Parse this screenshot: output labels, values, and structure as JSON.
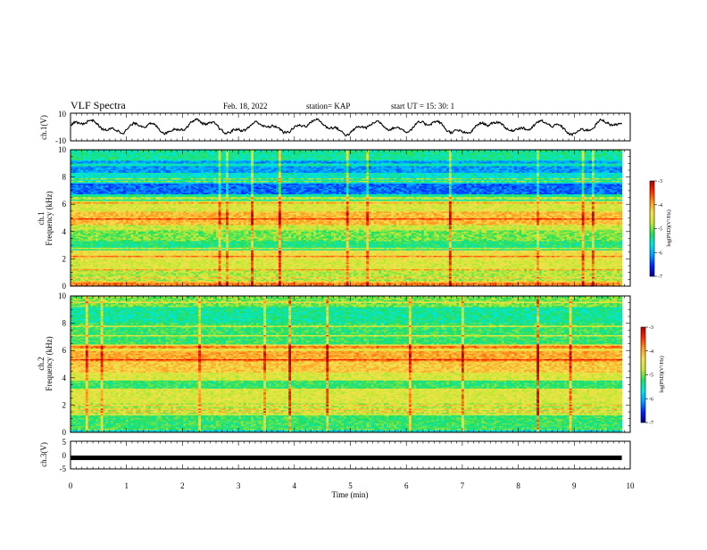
{
  "header": {
    "title": "VLF Spectra",
    "date": "Feb. 18, 2022",
    "station": "station= KAP",
    "start": "start  UT =   15: 30: 1"
  },
  "colorscale": {
    "stops": [
      "#000080",
      "#0022ff",
      "#00a0ff",
      "#00e6e6",
      "#20e060",
      "#c8e832",
      "#f5e050",
      "#ff9a20",
      "#ff2a00",
      "#b00000"
    ]
  },
  "chart_data": [
    {
      "type": "line",
      "name": "ch1-waveform",
      "ylabel": "ch.1(V)",
      "xlim": [
        0,
        10
      ],
      "ylim": [
        -10,
        10
      ],
      "yticks": [
        "10",
        "-10"
      ],
      "x_end": 9.85,
      "description_series": "raw signal fluctuates roughly between -6 and 6 V",
      "series": [
        {
          "values": []
        }
      ]
    },
    {
      "type": "heatmap",
      "name": "ch1-spectrogram",
      "ylabel_line1": "ch.1",
      "ylabel_line2": "Frequency (kHz)",
      "xlim": [
        0,
        10
      ],
      "ylim": [
        0,
        10
      ],
      "x_end": 9.85,
      "yticks": [
        "0",
        "2",
        "4",
        "6",
        "8",
        "10"
      ],
      "colorbar": {
        "label": "log(PSD)(V²/Hz)",
        "range": [
          -7,
          -3
        ],
        "ticks": [
          "-3",
          "-4",
          "-5",
          "-6",
          "-7"
        ]
      },
      "bands": [
        {
          "range": [
            0,
            0.3
          ],
          "level": -3.8
        },
        {
          "range": [
            0.3,
            1.2
          ],
          "level": -4.8
        },
        {
          "range": [
            1.2,
            2.0
          ],
          "level": -4.6
        },
        {
          "range": [
            2.0,
            2.6
          ],
          "level": -4.4
        },
        {
          "range": [
            2.6,
            3.3
          ],
          "level": -5.3
        },
        {
          "range": [
            3.3,
            4.1
          ],
          "level": -5.0
        },
        {
          "range": [
            4.1,
            4.6
          ],
          "level": -4.7
        },
        {
          "range": [
            4.6,
            5.5
          ],
          "level": -4.1
        },
        {
          "range": [
            5.5,
            6.3
          ],
          "level": -4.6
        },
        {
          "range": [
            6.3,
            6.8
          ],
          "level": -5.4
        },
        {
          "range": [
            6.8,
            7.6
          ],
          "level": -6.3
        },
        {
          "range": [
            7.6,
            8.2
          ],
          "level": -5.6
        },
        {
          "range": [
            8.2,
            9.3
          ],
          "level": -6.1
        },
        {
          "range": [
            9.3,
            10
          ],
          "level": -5.4
        }
      ]
    },
    {
      "type": "heatmap",
      "name": "ch2-spectrogram",
      "ylabel_line1": "ch.2",
      "ylabel_line2": "Frequency (kHz)",
      "xlim": [
        0,
        10
      ],
      "ylim": [
        0,
        10
      ],
      "x_end": 9.85,
      "yticks": [
        "0",
        "2",
        "4",
        "6",
        "8",
        "10"
      ],
      "colorbar": {
        "label": "log(PSD)(V²/Hz)",
        "range": [
          -7,
          -3
        ],
        "ticks": [
          "-3",
          "-4",
          "-5",
          "-6",
          "-7"
        ]
      },
      "bands": [
        {
          "range": [
            0,
            0.3
          ],
          "level": -5.7
        },
        {
          "range": [
            0.3,
            1.4
          ],
          "level": -5.2
        },
        {
          "range": [
            1.4,
            2.2
          ],
          "level": -4.8
        },
        {
          "range": [
            2.2,
            3.0
          ],
          "level": -4.6
        },
        {
          "range": [
            3.0,
            3.8
          ],
          "level": -5.2
        },
        {
          "range": [
            3.8,
            4.4
          ],
          "level": -4.6
        },
        {
          "range": [
            4.4,
            5.2
          ],
          "level": -4.2
        },
        {
          "range": [
            5.2,
            6.0
          ],
          "level": -4.0
        },
        {
          "range": [
            6.0,
            6.5
          ],
          "level": -4.4
        },
        {
          "range": [
            6.5,
            8.0
          ],
          "level": -5.2
        },
        {
          "range": [
            8.0,
            9.2
          ],
          "level": -5.4
        },
        {
          "range": [
            9.2,
            10
          ],
          "level": -5.0
        }
      ]
    },
    {
      "type": "line",
      "name": "ch3-waveform",
      "ylabel": "ch.3(V)",
      "xlim": [
        0,
        10
      ],
      "ylim": [
        -5,
        5
      ],
      "yticks": [
        "5",
        "0",
        "-5"
      ],
      "x_end": 9.85,
      "series": [
        {
          "values": [
            -1,
            -1
          ]
        }
      ]
    }
  ],
  "xaxis": {
    "label": "Time  (min)",
    "ticks": [
      "0",
      "1",
      "2",
      "3",
      "4",
      "5",
      "6",
      "7",
      "8",
      "9",
      "10"
    ]
  }
}
